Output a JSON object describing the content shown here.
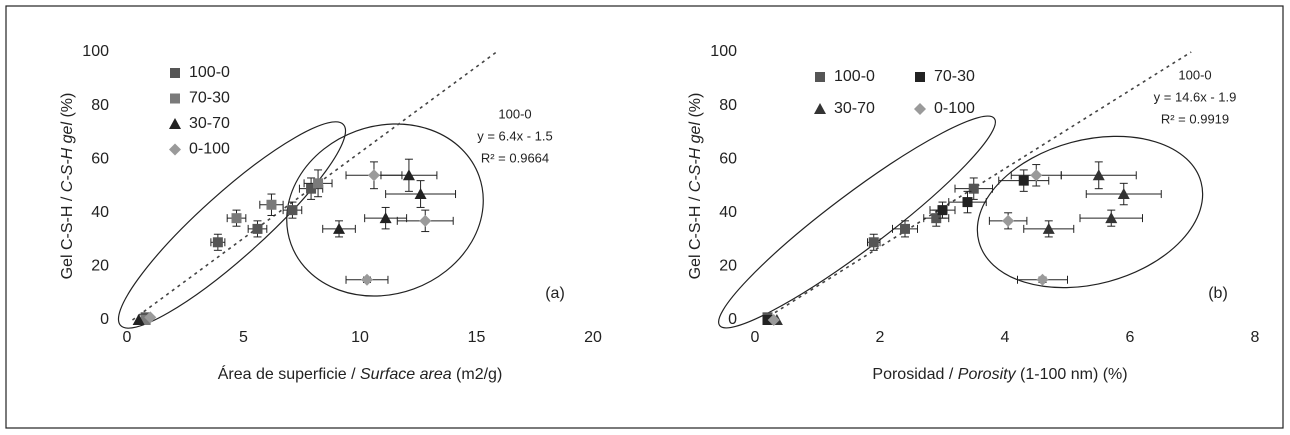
{
  "chart_data": [
    {
      "type": "scatter",
      "panel_label": "(a)",
      "x_label": {
        "text": "Área de superficie / ",
        "italic": "Surface area",
        "unit": " (m2/g)"
      },
      "y_label": {
        "text": "Gel C-S-H / ",
        "italic": "C-S-H gel",
        "unit": " (%)"
      },
      "xlim": [
        0,
        20
      ],
      "xticks": [
        0,
        5,
        10,
        15,
        20
      ],
      "ylim": [
        0,
        100
      ],
      "yticks": [
        0,
        20,
        40,
        60,
        80,
        100
      ],
      "legend": "upper left",
      "legend_columns": 1,
      "trend": {
        "label": "100-0",
        "equation": "y = 6.4x - 1.5",
        "r2": "R² = 0.9664",
        "slope": 6.4,
        "intercept": -1.5
      },
      "series": [
        {
          "name": "100-0",
          "color": "#555555",
          "marker": "square",
          "x": [
            0.8,
            3.9,
            5.6,
            7.1,
            7.9
          ],
          "values": [
            1,
            29,
            34,
            41,
            49
          ],
          "x_err": [
            0,
            0.3,
            0.4,
            0.4,
            0.5
          ],
          "y_err": [
            0,
            3,
            3,
            3,
            4
          ]
        },
        {
          "name": "70-30",
          "color": "#7a7a7a",
          "marker": "square",
          "x": [
            0.8,
            4.7,
            6.2,
            8.2
          ],
          "values": [
            0,
            38,
            43,
            51
          ],
          "x_err": [
            0,
            0.4,
            0.5,
            0.6
          ],
          "y_err": [
            0,
            3,
            4,
            5
          ]
        },
        {
          "name": "30-70",
          "color": "#222222",
          "marker": "triangle",
          "x": [
            0.5,
            9.1,
            11.1,
            12.1,
            12.6
          ],
          "values": [
            0,
            34,
            38,
            54,
            47
          ],
          "x_err": [
            0,
            0.7,
            0.9,
            1.2,
            1.5
          ],
          "y_err": [
            0,
            3,
            4,
            6,
            5
          ]
        },
        {
          "name": "0-100",
          "color": "#9a9a9a",
          "marker": "diamond",
          "x": [
            1,
            10.3,
            10.6,
            12.8
          ],
          "values": [
            1,
            15,
            54,
            37
          ],
          "x_err": [
            0,
            0.9,
            1.2,
            1.2
          ],
          "y_err": [
            0,
            1,
            5,
            4
          ]
        }
      ]
    },
    {
      "type": "scatter",
      "panel_label": "(b)",
      "x_label": {
        "text": "Porosidad / ",
        "italic": "Porosity",
        "unit": " (1-100 nm) (%)"
      },
      "y_label": {
        "text": "Gel C-S-H / ",
        "italic": "C-S-H gel",
        "unit": " (%)"
      },
      "xlim": [
        0,
        8
      ],
      "xticks": [
        0,
        2,
        4,
        6,
        8
      ],
      "ylim": [
        0,
        100
      ],
      "yticks": [
        0,
        20,
        40,
        60,
        80,
        100
      ],
      "legend": "upper left",
      "legend_columns": 2,
      "trend": {
        "label": "100-0",
        "equation": "y = 14.6x - 1.9",
        "r2": "R² = 0.9919",
        "slope": 14.6,
        "intercept": -1.9
      },
      "series": [
        {
          "name": "100-0",
          "color": "#555555",
          "marker": "square",
          "x": [
            0.2,
            1.9,
            2.4,
            2.9,
            3.5
          ],
          "values": [
            1,
            29,
            34,
            38,
            49
          ],
          "x_err": [
            0,
            0.1,
            0.2,
            0.2,
            0.3
          ],
          "y_err": [
            0,
            3,
            3,
            3,
            4
          ]
        },
        {
          "name": "70-30",
          "color": "#222222",
          "marker": "square",
          "x": [
            0.2,
            3,
            3.4,
            4.3
          ],
          "values": [
            0,
            41,
            44,
            52
          ],
          "x_err": [
            0,
            0.2,
            0.3,
            0.4
          ],
          "y_err": [
            0,
            3,
            4,
            4
          ]
        },
        {
          "name": "30-70",
          "color": "#333333",
          "marker": "triangle",
          "x": [
            0.35,
            4.7,
            5.7,
            5.5,
            5.9
          ],
          "values": [
            0,
            34,
            38,
            54,
            47
          ],
          "x_err": [
            0,
            0.4,
            0.5,
            0.6,
            0.6
          ],
          "y_err": [
            0,
            3,
            3,
            5,
            4
          ]
        },
        {
          "name": "0-100",
          "color": "#9a9a9a",
          "marker": "diamond",
          "x": [
            0.3,
            4.6,
            4.05,
            4.5
          ],
          "values": [
            0,
            15,
            37,
            54
          ],
          "x_err": [
            0,
            0.4,
            0.3,
            0.4
          ],
          "y_err": [
            0,
            1,
            3,
            4
          ]
        }
      ]
    }
  ]
}
